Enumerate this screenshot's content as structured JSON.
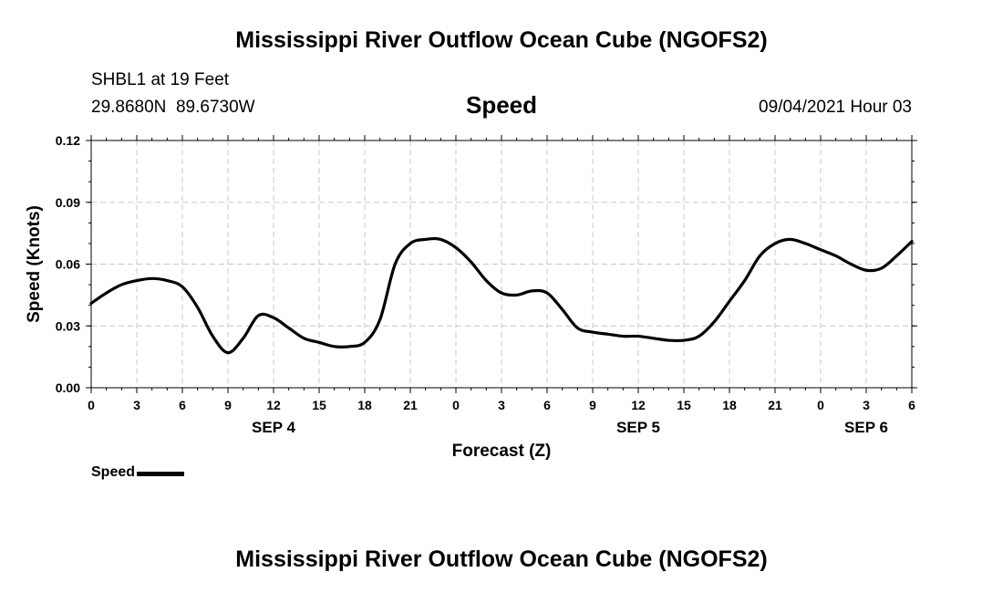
{
  "header": {
    "title": "Mississippi River Outflow Ocean Cube (NGOFS2)",
    "station": "SHBL1 at 19 Feet",
    "coords": "29.8680N  89.6730W",
    "variable": "Speed",
    "datetime": "09/04/2021 Hour 03"
  },
  "footer": {
    "title": "Mississippi River Outflow Ocean Cube (NGOFS2)"
  },
  "legend": {
    "label": "Speed",
    "color": "#000000"
  },
  "chart_data": {
    "type": "line",
    "title": "Mississippi River Outflow Ocean Cube (NGOFS2)",
    "xlabel": "Forecast (Z)",
    "ylabel": "Speed (Knots)",
    "ylim": [
      0,
      0.12
    ],
    "xlim": [
      0,
      54
    ],
    "y_ticks": [
      "0.00",
      "0.03",
      "0.06",
      "0.09",
      "0.12"
    ],
    "x_tick_labels": [
      "0",
      "3",
      "6",
      "9",
      "12",
      "15",
      "18",
      "21",
      "0",
      "3",
      "6",
      "9",
      "12",
      "15",
      "18",
      "21",
      "0",
      "3",
      "6"
    ],
    "date_labels": [
      {
        "label": "SEP 4",
        "hour": 12
      },
      {
        "label": "SEP 5",
        "hour": 36
      },
      {
        "label": "SEP 6",
        "hour": 51
      }
    ],
    "grid": true,
    "legend": "bottom-left",
    "series": [
      {
        "name": "Speed",
        "color": "#000000",
        "x": [
          0,
          1,
          2,
          3,
          4,
          5,
          6,
          7,
          8,
          9,
          10,
          11,
          12,
          13,
          14,
          15,
          16,
          17,
          18,
          19,
          20,
          21,
          22,
          23,
          24,
          25,
          26,
          27,
          28,
          29,
          30,
          31,
          32,
          33,
          34,
          35,
          36,
          37,
          38,
          39,
          40,
          41,
          42,
          43,
          44,
          45,
          46,
          47,
          48,
          49,
          50,
          51,
          52,
          53,
          54
        ],
        "y": [
          0.041,
          0.046,
          0.05,
          0.052,
          0.053,
          0.052,
          0.049,
          0.039,
          0.025,
          0.017,
          0.024,
          0.035,
          0.034,
          0.029,
          0.024,
          0.022,
          0.02,
          0.02,
          0.022,
          0.033,
          0.06,
          0.07,
          0.072,
          0.072,
          0.068,
          0.061,
          0.052,
          0.046,
          0.045,
          0.047,
          0.046,
          0.038,
          0.029,
          0.027,
          0.026,
          0.025,
          0.025,
          0.024,
          0.023,
          0.023,
          0.025,
          0.032,
          0.042,
          0.052,
          0.064,
          0.07,
          0.072,
          0.07,
          0.067,
          0.064,
          0.06,
          0.057,
          0.058,
          0.064,
          0.071
        ]
      }
    ]
  }
}
